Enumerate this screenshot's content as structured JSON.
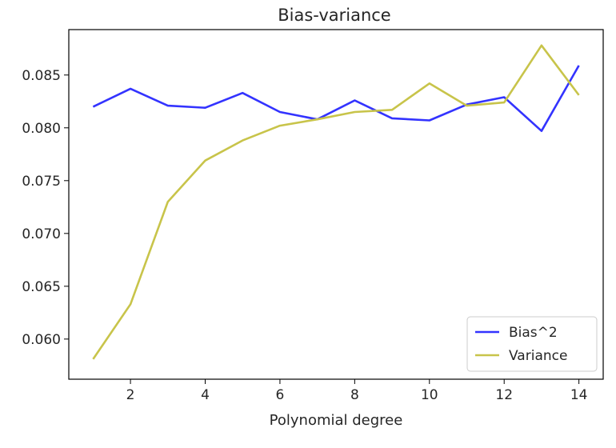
{
  "chart_data": {
    "type": "line",
    "title": "Bias-variance",
    "xlabel": "Polynomial degree",
    "ylabel": "",
    "xlim": [
      0.35,
      14.65
    ],
    "ylim": [
      0.0562,
      0.0893
    ],
    "x_ticks": [
      2,
      4,
      6,
      8,
      10,
      12,
      14
    ],
    "x_tick_labels": [
      "2",
      "4",
      "6",
      "8",
      "10",
      "12",
      "14"
    ],
    "y_ticks": [
      0.06,
      0.065,
      0.07,
      0.075,
      0.08,
      0.085
    ],
    "y_tick_labels": [
      "0.060",
      "0.065",
      "0.070",
      "0.075",
      "0.080",
      "0.085"
    ],
    "x": [
      1,
      2,
      3,
      4,
      5,
      6,
      7,
      8,
      9,
      10,
      11,
      12,
      13,
      14
    ],
    "series": [
      {
        "name": "Bias^2",
        "color": "#3333ff",
        "values": [
          0.082,
          0.0837,
          0.0821,
          0.0819,
          0.0833,
          0.0815,
          0.0808,
          0.0826,
          0.0809,
          0.0807,
          0.0822,
          0.0829,
          0.0797,
          0.0859
        ]
      },
      {
        "name": "Variance",
        "color": "#c8c44a",
        "values": [
          0.0581,
          0.0633,
          0.073,
          0.0769,
          0.0788,
          0.0802,
          0.0808,
          0.0815,
          0.0817,
          0.0842,
          0.0821,
          0.0824,
          0.0878,
          0.0831
        ]
      }
    ],
    "grid": false,
    "legend_position": "lower-right"
  }
}
